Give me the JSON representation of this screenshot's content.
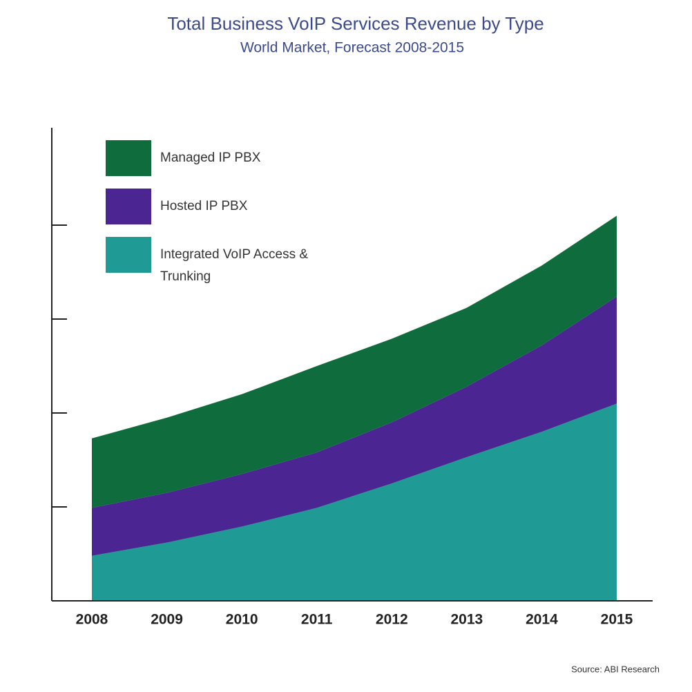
{
  "chart_data": {
    "type": "stacked-area",
    "title": "Total Business VoIP Services Revenue by Type",
    "subtitle": "World Market, Forecast 2008-2015",
    "source": "Source: ABI Research",
    "categories": [
      "2008",
      "2009",
      "2010",
      "2011",
      "2012",
      "2013",
      "2014",
      "2015"
    ],
    "series": [
      {
        "name": "Integrated VoIP Access & Trunking",
        "color": "#1f9a94",
        "values": [
          0.48,
          0.62,
          0.79,
          0.99,
          1.25,
          1.53,
          1.8,
          2.1
        ]
      },
      {
        "name": "Hosted IP PBX",
        "color": "#4b2591",
        "values": [
          0.51,
          0.53,
          0.56,
          0.59,
          0.65,
          0.75,
          0.92,
          1.14
        ]
      },
      {
        "name": "Managed IP PBX",
        "color": "#0f6c3d",
        "values": [
          0.74,
          0.8,
          0.85,
          0.92,
          0.89,
          0.84,
          0.85,
          0.86
        ]
      }
    ],
    "ylim": [
      0,
      5
    ],
    "yticks": [
      1,
      2,
      3,
      4
    ]
  }
}
